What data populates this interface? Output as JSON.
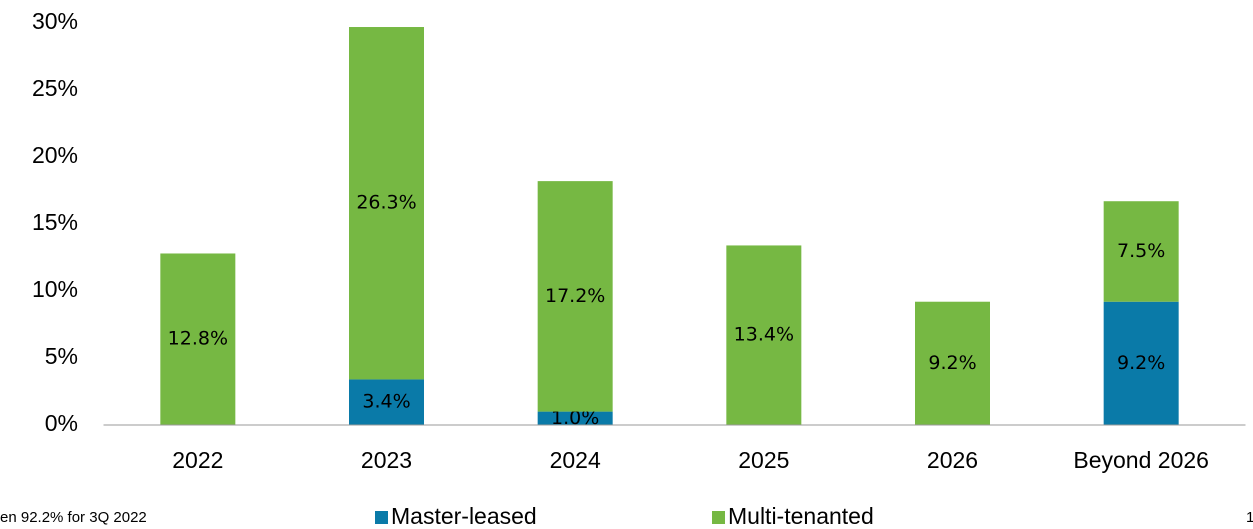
{
  "chart_data": {
    "type": "stacked_bar",
    "categories": [
      "2022",
      "2023",
      "2024",
      "2025",
      "2026",
      "Beyond 2026"
    ],
    "series": [
      {
        "name": "Master-leased",
        "color": "#0a7aa8",
        "values": [
          null,
          3.4,
          1.0,
          null,
          null,
          9.2
        ],
        "value_labels": [
          null,
          "3.4%",
          "1.0%",
          null,
          null,
          "9.2%"
        ]
      },
      {
        "name": "Multi-tenanted",
        "color": "#76b843",
        "values": [
          12.8,
          26.3,
          17.2,
          13.4,
          9.2,
          7.5
        ],
        "value_labels": [
          "12.8%",
          "26.3%",
          "17.2%",
          "13.4%",
          "9.2%",
          "7.5%"
        ]
      }
    ],
    "ylim": [
      0,
      30
    ],
    "yticks": [
      {
        "value": 0,
        "label": "0%"
      },
      {
        "value": 5,
        "label": "5%"
      },
      {
        "value": 10,
        "label": "10%"
      },
      {
        "value": 15,
        "label": "15%"
      },
      {
        "value": 20,
        "label": "20%"
      },
      {
        "value": 25,
        "label": "25%"
      },
      {
        "value": 30,
        "label": "30%"
      }
    ],
    "legend": "bottom",
    "footnote": "en 92.2% for 3Q 2022",
    "page_number": "1"
  }
}
